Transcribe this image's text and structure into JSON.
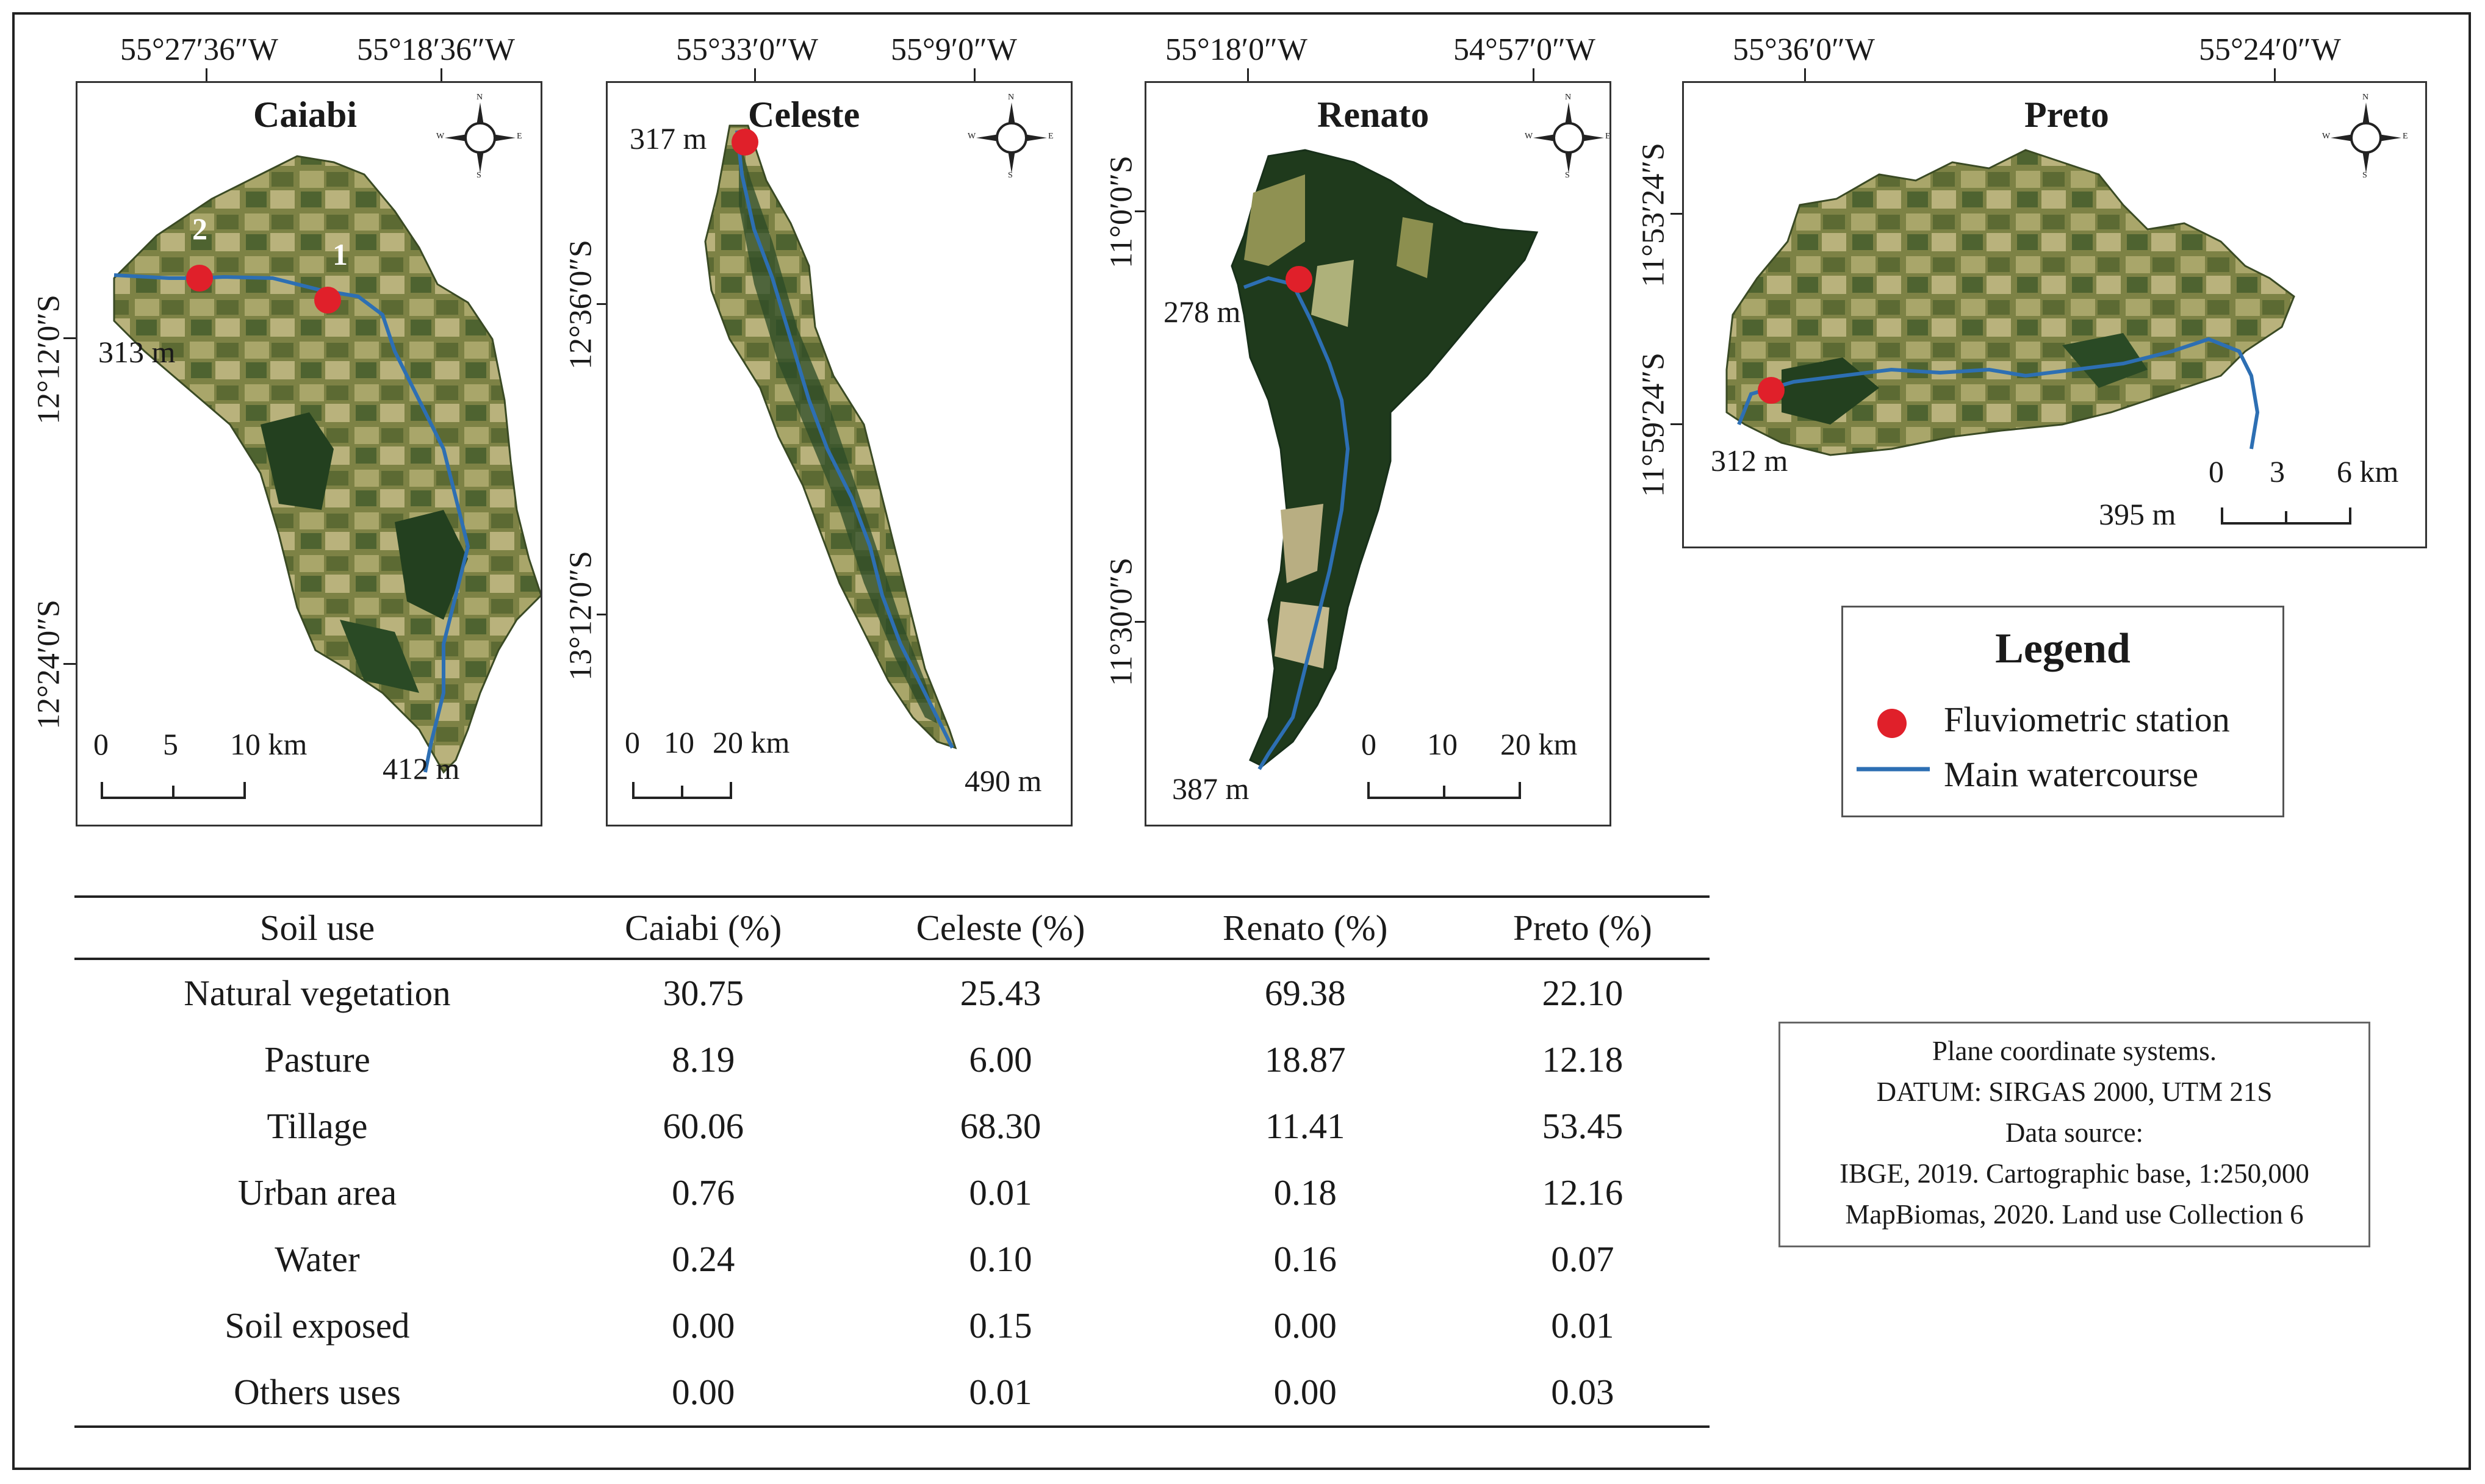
{
  "maps": [
    {
      "name": "Caiabi",
      "lon_ticks": [
        "55°27′36″W",
        "55°18′36″W"
      ],
      "lat_ticks": [
        "12°12′0″S",
        "12°24′0″S"
      ],
      "elevations": [
        "313 m",
        "412 m"
      ],
      "station_numbers": [
        "2",
        "1"
      ],
      "scale": [
        "0",
        "5",
        "10 km"
      ]
    },
    {
      "name": "Celeste",
      "lon_ticks": [
        "55°33′0″W",
        "55°9′0″W"
      ],
      "lat_ticks": [
        "12°36′0″S",
        "13°12′0″S"
      ],
      "elevations": [
        "317 m",
        "490 m"
      ],
      "scale": [
        "0",
        "10",
        "20 km"
      ]
    },
    {
      "name": "Renato",
      "lon_ticks": [
        "55°18′0″W",
        "54°57′0″W"
      ],
      "lat_ticks": [
        "11°0′0″S",
        "11°30′0″S"
      ],
      "elevations": [
        "278 m",
        "387 m"
      ],
      "scale": [
        "0",
        "10",
        "20 km"
      ]
    },
    {
      "name": "Preto",
      "lon_ticks": [
        "55°36′0″W",
        "55°24′0″W"
      ],
      "lat_ticks": [
        "11°53′24″S",
        "11°59′24″S"
      ],
      "elevations": [
        "312 m",
        "395 m"
      ],
      "scale": [
        "0",
        "3",
        "6 km"
      ]
    }
  ],
  "compass_letters": [
    "N",
    "S",
    "E",
    "W"
  ],
  "legend": {
    "title": "Legend",
    "station_label": "Fluviometric station",
    "river_label": "Main watercourse"
  },
  "info": {
    "lines": [
      "Plane coordinate systems.",
      "DATUM: SIRGAS 2000, UTM 21S",
      "Data source:",
      "IBGE, 2019. Cartographic base, 1:250,000",
      "MapBiomas, 2020. Land use Collection 6"
    ]
  },
  "table": {
    "headers": [
      "Soil use",
      "Caiabi (%)",
      "Celeste (%)",
      "Renato (%)",
      "Preto (%)"
    ],
    "rows": [
      [
        "Natural vegetation",
        "30.75",
        "25.43",
        "69.38",
        "22.10"
      ],
      [
        "Pasture",
        "8.19",
        "6.00",
        "18.87",
        "12.18"
      ],
      [
        "Tillage",
        "60.06",
        "68.30",
        "11.41",
        "53.45"
      ],
      [
        "Urban area",
        "0.76",
        "0.01",
        "0.18",
        "12.16"
      ],
      [
        "Water",
        "0.24",
        "0.10",
        "0.16",
        "0.07"
      ],
      [
        "Soil exposed",
        "0.00",
        "0.15",
        "0.00",
        "0.01"
      ],
      [
        "Others uses",
        "0.00",
        "0.01",
        "0.00",
        "0.03"
      ]
    ]
  },
  "colors": {
    "station": "#e0202a",
    "river": "#2d6fb3",
    "forest": "#1f3a1c",
    "crop": "#8a8a4a",
    "pasture": "#c9c18a"
  }
}
